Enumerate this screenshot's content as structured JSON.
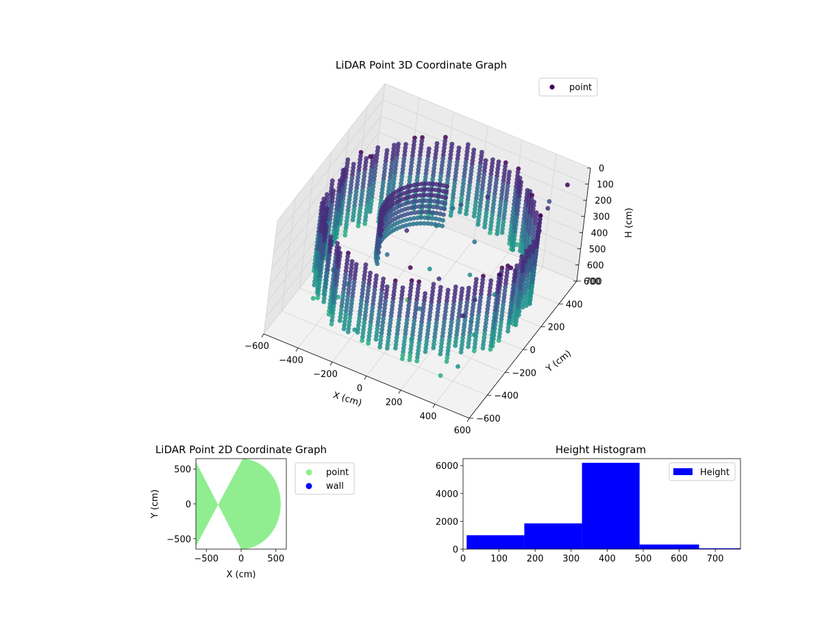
{
  "chart_data": [
    {
      "type": "scatter",
      "projection": "3d",
      "title": "LiDAR Point 3D Coordinate Graph",
      "xlabel": "X (cm)",
      "ylabel": "Y (cm)",
      "zlabel": "H (cm)",
      "xlim": [
        -600,
        600
      ],
      "ylim": [
        -600,
        600
      ],
      "zlim": [
        0,
        700
      ],
      "z_inverted": true,
      "x_ticks": [
        -600,
        -400,
        -200,
        0,
        200,
        400,
        600
      ],
      "y_ticks": [
        -600,
        -400,
        -200,
        0,
        200,
        400,
        600
      ],
      "z_ticks": [
        0,
        100,
        200,
        300,
        400,
        500,
        600,
        700
      ],
      "legend": {
        "placement": "top-right",
        "entries": [
          "point"
        ]
      },
      "colormap": [
        "#440154",
        "#472d7b",
        "#3b528b",
        "#2c728e",
        "#21918c",
        "#28ae80",
        "#5ec962"
      ],
      "grid": true,
      "series": [
        {
          "name": "point",
          "description_shape": "cylindrical wall of points around origin, radius about 550 cm, heights 100-600 cm, with scattered outliers",
          "wall_radius": 550,
          "wall_height_range": [
            100,
            600
          ]
        }
      ]
    },
    {
      "type": "scatter",
      "title": "LiDAR Point 2D Coordinate Graph",
      "xlabel": "X (cm)",
      "ylabel": "Y (cm)",
      "xlim": [
        -650,
        650
      ],
      "ylim": [
        -650,
        650
      ],
      "x_ticks": [
        -500,
        0,
        500
      ],
      "y_ticks": [
        -500,
        0,
        500
      ],
      "legend": {
        "placement": "outside-right",
        "entries": [
          "point",
          "wall"
        ]
      },
      "series": [
        {
          "name": "point",
          "color": "#90ee90"
        },
        {
          "name": "wall",
          "color": "#0000ff"
        }
      ]
    },
    {
      "type": "bar",
      "subtype": "histogram",
      "title": "Height Histogram",
      "xlabel": "",
      "ylabel": "",
      "xlim": [
        0,
        770
      ],
      "ylim": [
        0,
        6500
      ],
      "x_ticks": [
        0,
        100,
        200,
        300,
        400,
        500,
        600,
        700
      ],
      "y_ticks": [
        0,
        2000,
        4000,
        6000
      ],
      "legend": {
        "placement": "top-right",
        "entries": [
          "Height"
        ]
      },
      "color": "#0000ff",
      "series": [
        {
          "name": "Height",
          "bins": [
            {
              "from": 10,
              "to": 170,
              "count": 1000
            },
            {
              "from": 170,
              "to": 330,
              "count": 1850
            },
            {
              "from": 330,
              "to": 490,
              "count": 6200
            },
            {
              "from": 490,
              "to": 655,
              "count": 330
            },
            {
              "from": 655,
              "to": 770,
              "count": 60
            }
          ]
        }
      ]
    }
  ]
}
